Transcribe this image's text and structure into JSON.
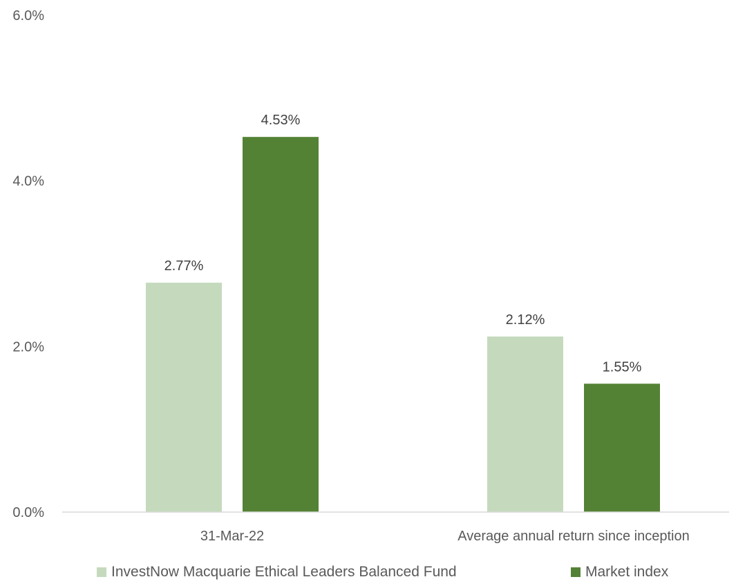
{
  "chart_data": {
    "type": "bar",
    "categories": [
      "31-Mar-22",
      "Average annual return since inception"
    ],
    "series": [
      {
        "name": "InvestNow Macquarie Ethical Leaders Balanced Fund",
        "values": [
          2.77,
          2.12
        ],
        "labels": [
          "2.77%",
          "2.12%"
        ],
        "color": "#c5dabd"
      },
      {
        "name": "Market index",
        "values": [
          4.53,
          1.55
        ],
        "labels": [
          "4.53%",
          "1.55%"
        ],
        "color": "#548235"
      }
    ],
    "ylim": [
      0,
      6
    ],
    "yticks": [
      0,
      2,
      4,
      6
    ],
    "ytick_labels": [
      "0.0%",
      "2.0%",
      "4.0%",
      "6.0%"
    ],
    "grid": false,
    "legend": "bottom",
    "axis_color": "#d9d9d9"
  }
}
